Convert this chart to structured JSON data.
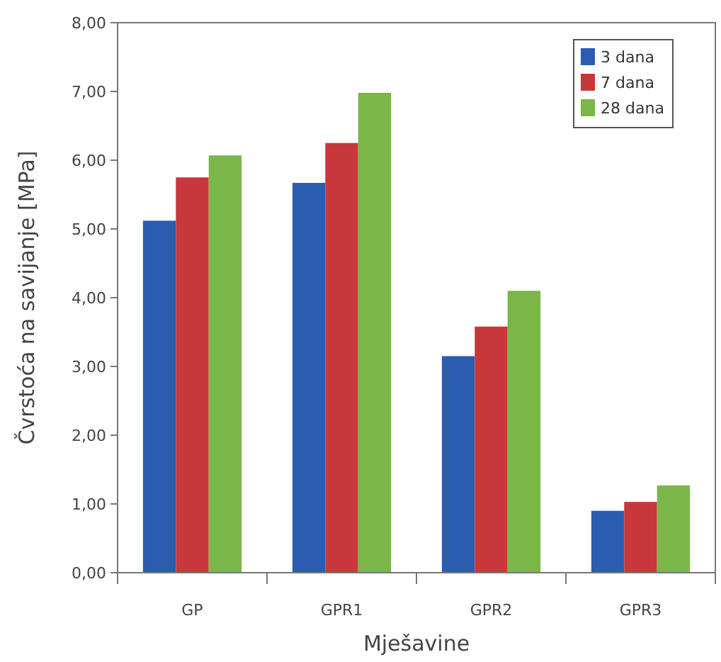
{
  "chart_data": {
    "type": "bar",
    "xlabel": "Mješavine",
    "ylabel": "Čvrstoća na savijanje [MPa]",
    "categories": [
      "GP",
      "GPR1",
      "GPR2",
      "GPR3"
    ],
    "series": [
      {
        "name": "3 dana",
        "color": "#2a5db0",
        "values": [
          5.12,
          5.67,
          3.15,
          0.9
        ]
      },
      {
        "name": "7 dana",
        "color": "#c8383a",
        "values": [
          5.75,
          6.25,
          3.58,
          1.03
        ]
      },
      {
        "name": "28 dana",
        "color": "#7ab648",
        "values": [
          6.07,
          6.98,
          4.1,
          1.27
        ]
      }
    ],
    "ylim": [
      0,
      8
    ],
    "yticks": [
      {
        "value": 0,
        "label": "0,00"
      },
      {
        "value": 1,
        "label": "1,00"
      },
      {
        "value": 2,
        "label": "2,00"
      },
      {
        "value": 3,
        "label": "3,00"
      },
      {
        "value": 4,
        "label": "4,00"
      },
      {
        "value": 5,
        "label": "5,00"
      },
      {
        "value": 6,
        "label": "6,00"
      },
      {
        "value": 7,
        "label": "7,00"
      },
      {
        "value": 8,
        "label": "8,00"
      }
    ],
    "grid": false,
    "legend": "top right"
  }
}
